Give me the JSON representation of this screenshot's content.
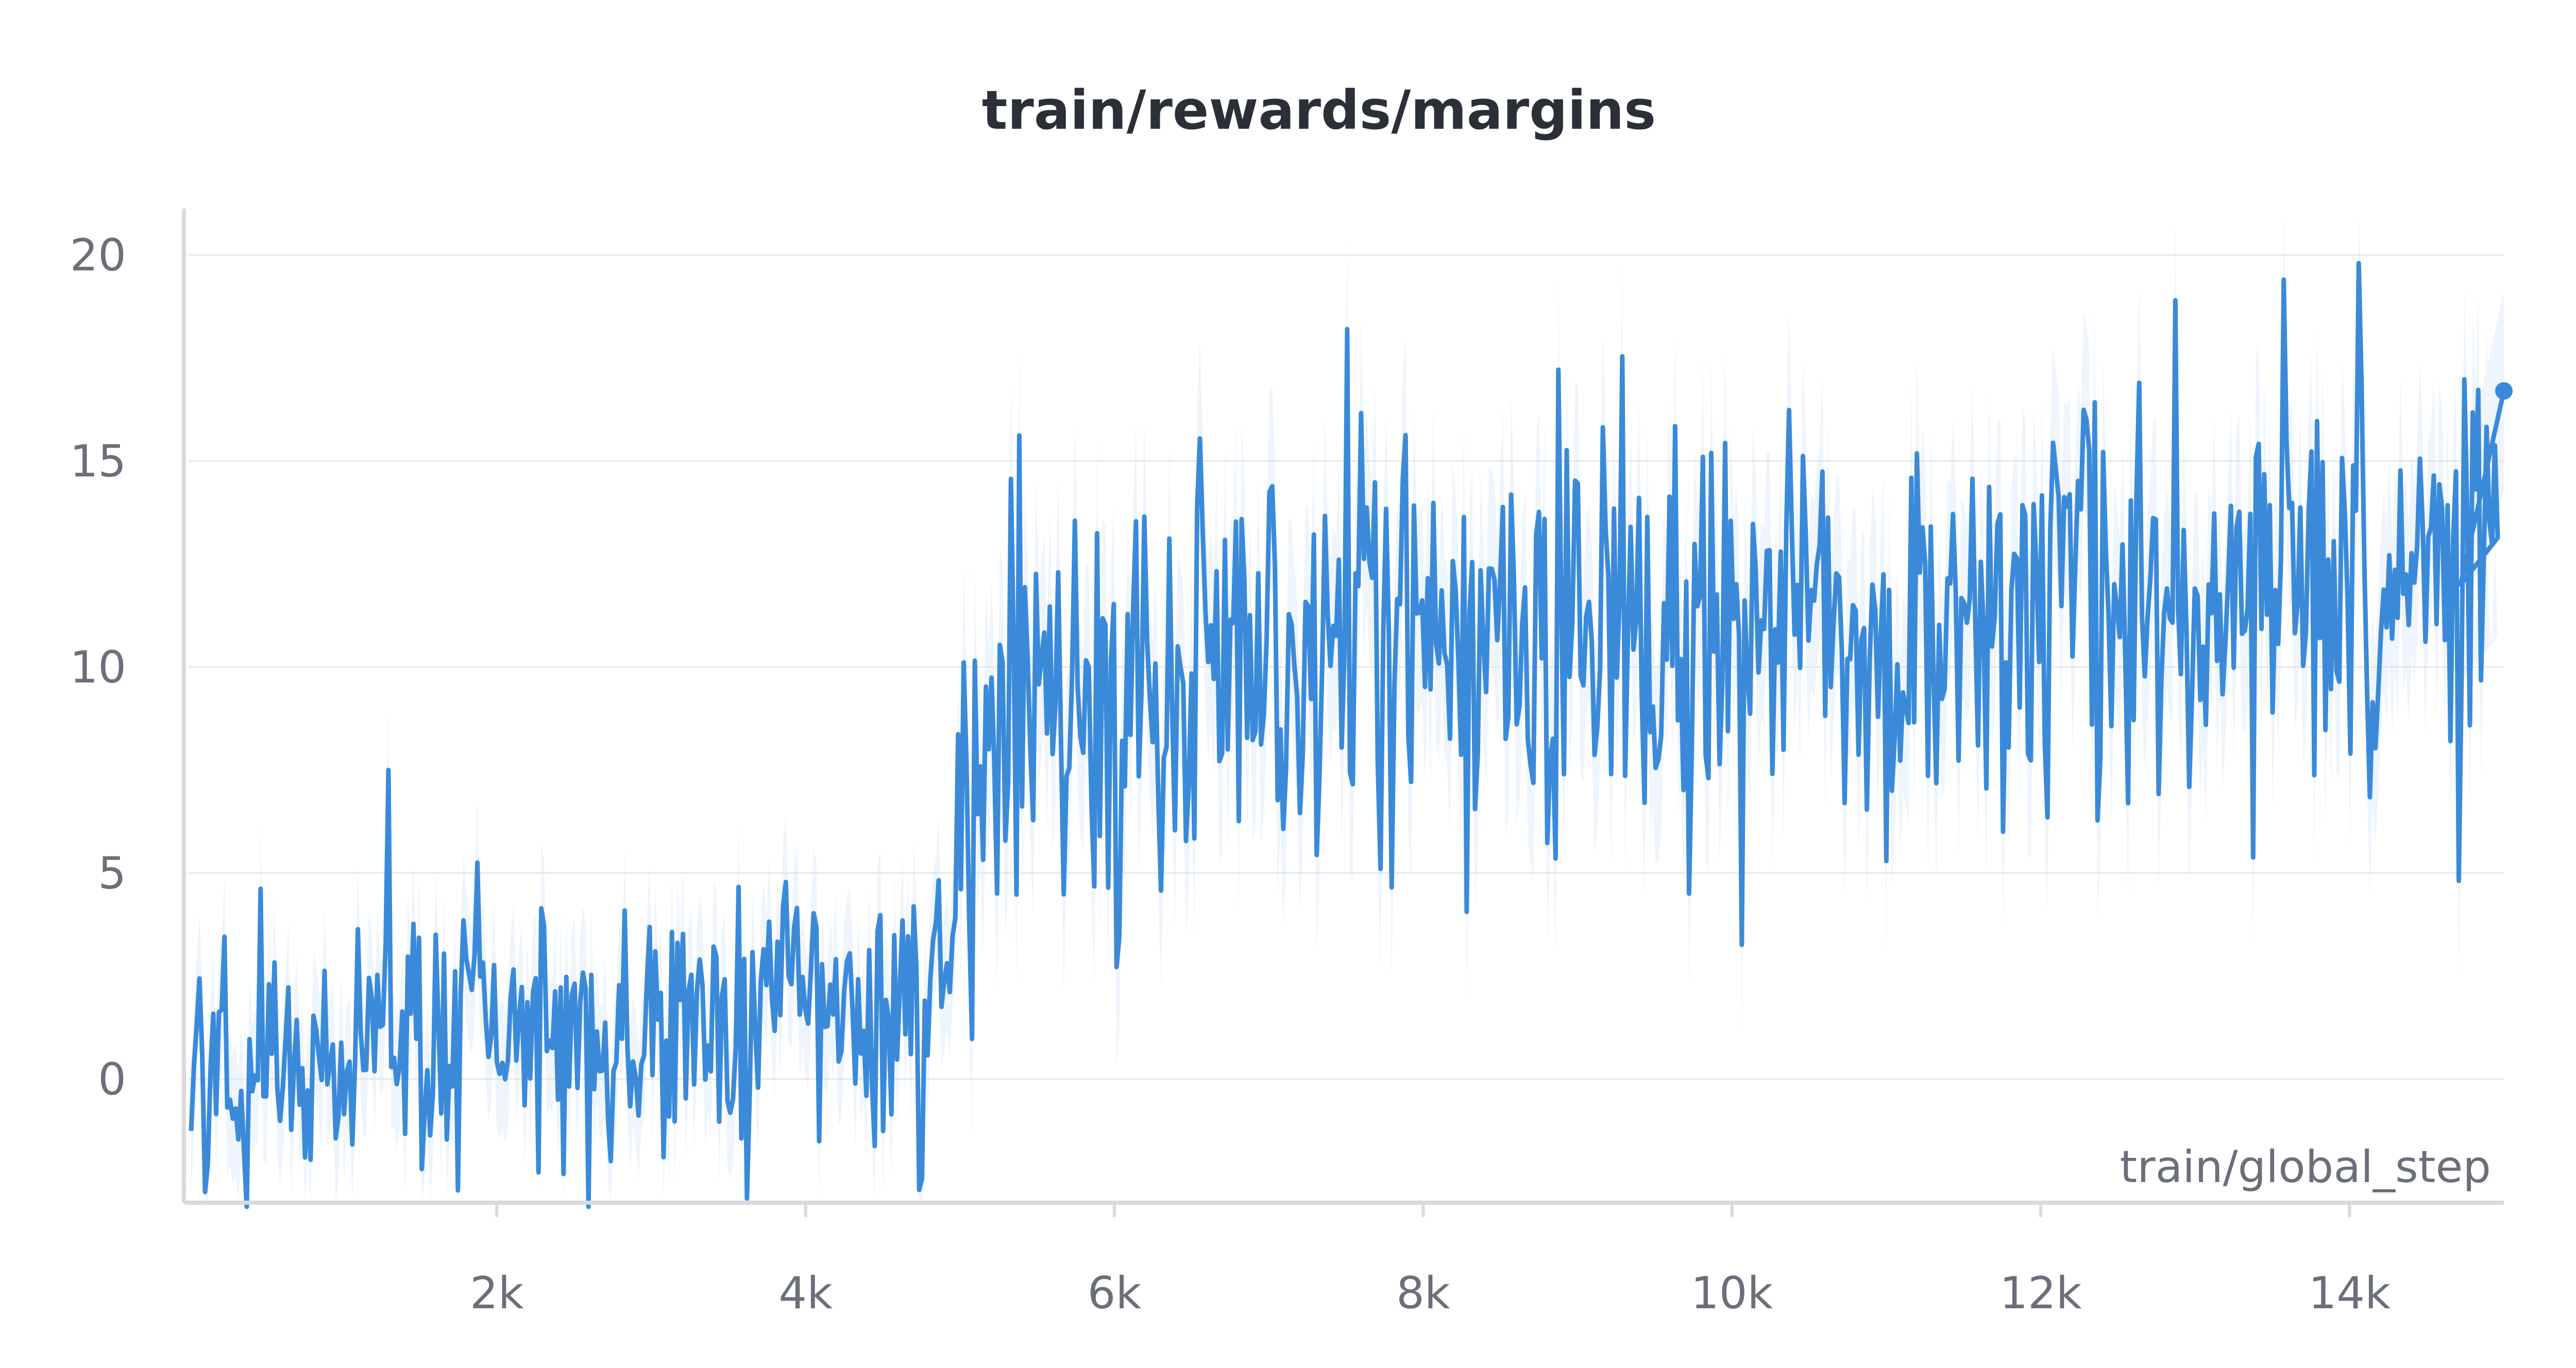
{
  "colors": {
    "series": "#3a8ad9",
    "band": "#cfe2f5",
    "grid": "#e6e8ec",
    "axis": "#d8dadf",
    "title": "#2b2f38",
    "tick": "#6b6f7a"
  },
  "chart_data": {
    "type": "line",
    "title": "train/rewards/margins",
    "xlabel": "train/global_step",
    "ylabel": "",
    "xlim": [
      0,
      15000
    ],
    "ylim": [
      -3,
      21
    ],
    "x_ticks": [
      2000,
      4000,
      6000,
      8000,
      10000,
      12000,
      14000
    ],
    "x_tick_labels": [
      "2k",
      "4k",
      "6k",
      "8k",
      "10k",
      "12k",
      "14k"
    ],
    "y_ticks": [
      0,
      5,
      10,
      15,
      20
    ],
    "y_tick_labels": [
      "0",
      "5",
      "10",
      "15",
      "20"
    ],
    "grid": true,
    "legend": "none",
    "series": [
      {
        "x": [
          0,
          250,
          500,
          750,
          1000,
          1250,
          1500,
          1750,
          2000,
          2250,
          2500,
          2750,
          3000,
          3250,
          3500,
          3750,
          4000,
          4250,
          4500,
          4750,
          4900,
          5000,
          5100,
          5250,
          5500,
          5750,
          6000,
          6250,
          6500,
          6750,
          7000,
          7250,
          7500,
          7750,
          8000,
          8250,
          8500,
          8750,
          9000,
          9250,
          9500,
          9750,
          10000,
          10250,
          10500,
          10750,
          11000,
          11250,
          11500,
          11750,
          12000,
          12250,
          12500,
          12750,
          13000,
          13250,
          13500,
          13750,
          14000,
          14250,
          14500,
          14750,
          15000
        ],
        "values": [
          0.0,
          0.5,
          0.8,
          1.0,
          0.7,
          1.2,
          0.9,
          1.0,
          0.8,
          0.9,
          1.1,
          1.0,
          1.2,
          1.3,
          1.4,
          1.5,
          1.6,
          1.8,
          1.4,
          1.2,
          1.0,
          6.5,
          8.0,
          8.5,
          9.0,
          9.3,
          9.0,
          9.8,
          10.5,
          9.5,
          10.0,
          9.8,
          10.2,
          10.5,
          10.0,
          10.6,
          10.4,
          10.3,
          10.8,
          10.5,
          10.2,
          10.0,
          10.6,
          11.0,
          11.0,
          11.2,
          11.0,
          11.5,
          11.3,
          11.0,
          11.4,
          11.2,
          11.2,
          11.6,
          11.5,
          11.8,
          11.2,
          11.4,
          11.5,
          11.3,
          11.6,
          11.8,
          16.7
        ]
      }
    ],
    "extremes": [
      {
        "x": 1300,
        "y": 7.5
      },
      {
        "x": 7500,
        "y": 18.2
      },
      {
        "x": 14060,
        "y": 19.8
      },
      {
        "x": 13580,
        "y": 19.4
      },
      {
        "x": 12880,
        "y": 18.9
      },
      {
        "x": 9720,
        "y": 4.5
      },
      {
        "x": 7720,
        "y": 5.1
      },
      {
        "x": 380,
        "y": -3.1
      },
      {
        "x": 3620,
        "y": -2.9
      },
      {
        "x": 2600,
        "y": -3.1
      }
    ]
  }
}
